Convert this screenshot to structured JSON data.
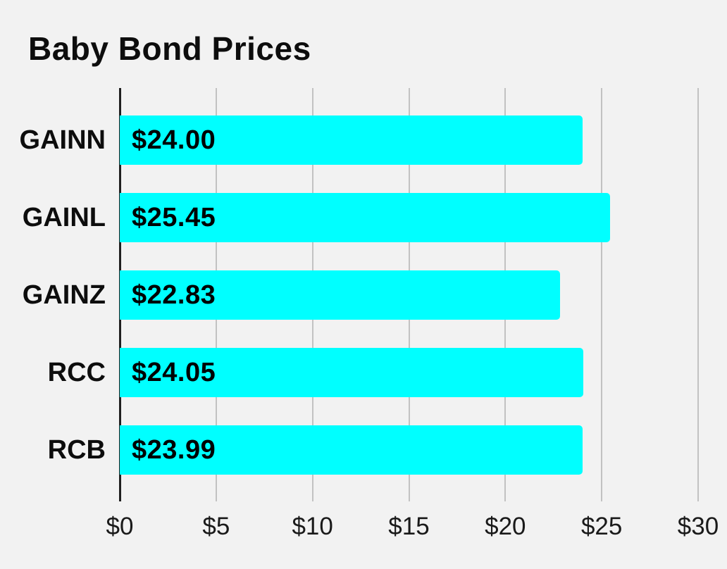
{
  "title": "Baby Bond Prices",
  "colors": {
    "background": "#f2f2f2",
    "bar": "#00ffff",
    "axis_line": "#1f1f1f",
    "gridline": "#c2c2c2",
    "text": "#0d0d0d"
  },
  "chart_data": {
    "type": "bar",
    "orientation": "horizontal",
    "title": "Baby Bond Prices",
    "categories": [
      "GAINN",
      "GAINL",
      "GAINZ",
      "RCC",
      "RCB"
    ],
    "values": [
      24.0,
      25.45,
      22.83,
      24.05,
      23.99
    ],
    "value_labels": [
      "$24.00",
      "$25.45",
      "$22.83",
      "$24.05",
      "$23.99"
    ],
    "xlim": [
      0,
      30
    ],
    "x_ticks": [
      0,
      5,
      10,
      15,
      20,
      25,
      30
    ],
    "x_tick_labels": [
      "$0",
      "$5",
      "$10",
      "$15",
      "$20",
      "$25",
      "$30"
    ],
    "xlabel": "",
    "ylabel": "",
    "grid": true,
    "legend": false,
    "bar_color": "#00ffff"
  }
}
